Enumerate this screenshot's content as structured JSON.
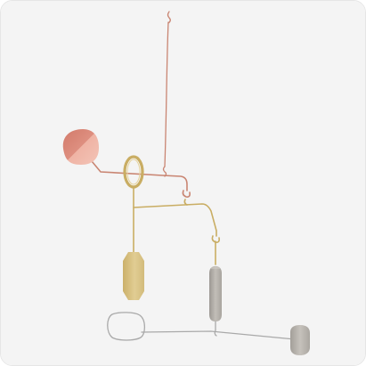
{
  "image": {
    "subject": "mobile-sculpture",
    "colors": {
      "background": "#f4f4f4",
      "copper": "#c98572",
      "copper_light": "#e8aa9a",
      "brass": "#c9ad63",
      "brass_plate": "#d9c385",
      "steel": "#9e9b96",
      "steel_plate": "#b4b0aa",
      "wire_gray": "#a9a9a9"
    }
  }
}
